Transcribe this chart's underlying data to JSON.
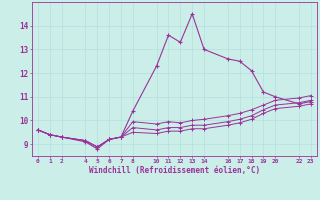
{
  "xlabel": "Windchill (Refroidissement éolien,°C)",
  "bg_color": "#cceee8",
  "line_color": "#993399",
  "xticks": [
    0,
    1,
    2,
    4,
    5,
    6,
    7,
    8,
    10,
    11,
    12,
    13,
    14,
    16,
    17,
    18,
    19,
    20,
    22,
    23
  ],
  "ylim": [
    8.5,
    15.0
  ],
  "xlim": [
    -0.5,
    23.5
  ],
  "yticks": [
    9,
    10,
    11,
    12,
    13,
    14
  ],
  "line1_x": [
    0,
    1,
    2,
    4,
    5,
    6,
    7,
    8,
    10,
    11,
    12,
    13,
    14,
    16,
    17,
    18,
    19,
    20,
    22,
    23
  ],
  "line1_y": [
    9.6,
    9.4,
    9.3,
    9.1,
    8.8,
    9.2,
    9.3,
    10.4,
    12.3,
    13.6,
    13.3,
    14.5,
    13.0,
    12.6,
    12.5,
    12.1,
    11.2,
    11.0,
    10.7,
    10.8
  ],
  "line2_x": [
    0,
    1,
    2,
    4,
    5,
    6,
    7,
    8,
    10,
    11,
    12,
    13,
    14,
    16,
    17,
    18,
    19,
    20,
    22,
    23
  ],
  "line2_y": [
    9.6,
    9.4,
    9.3,
    9.15,
    8.88,
    9.2,
    9.3,
    9.95,
    9.85,
    9.95,
    9.9,
    10.0,
    10.05,
    10.2,
    10.3,
    10.45,
    10.65,
    10.85,
    10.95,
    11.05
  ],
  "line3_x": [
    0,
    1,
    2,
    4,
    5,
    6,
    7,
    8,
    10,
    11,
    12,
    13,
    14,
    16,
    17,
    18,
    19,
    20,
    22,
    23
  ],
  "line3_y": [
    9.6,
    9.4,
    9.3,
    9.15,
    8.88,
    9.2,
    9.3,
    9.7,
    9.6,
    9.7,
    9.7,
    9.8,
    9.8,
    9.95,
    10.05,
    10.2,
    10.45,
    10.65,
    10.75,
    10.85
  ],
  "line4_x": [
    0,
    1,
    2,
    4,
    5,
    6,
    7,
    8,
    10,
    11,
    12,
    13,
    14,
    16,
    17,
    18,
    19,
    20,
    22,
    23
  ],
  "line4_y": [
    9.6,
    9.4,
    9.3,
    9.15,
    8.88,
    9.2,
    9.3,
    9.5,
    9.45,
    9.55,
    9.55,
    9.65,
    9.65,
    9.8,
    9.9,
    10.05,
    10.3,
    10.5,
    10.6,
    10.7
  ]
}
